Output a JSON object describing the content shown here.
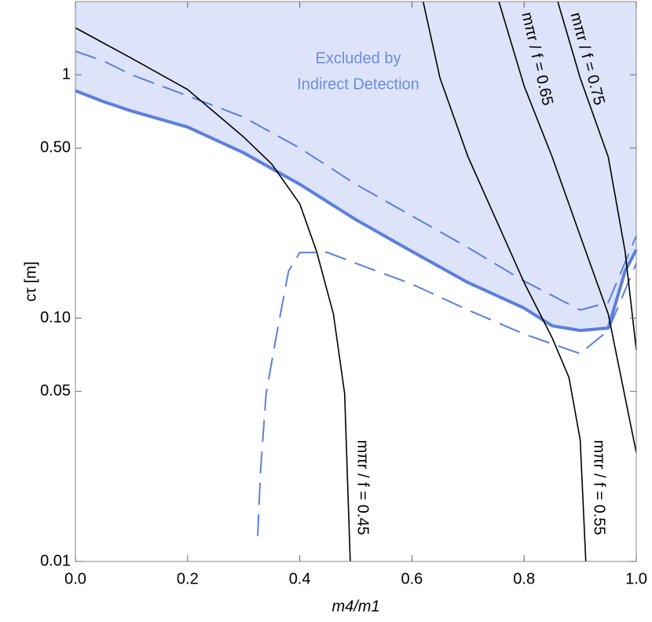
{
  "chart_data": {
    "type": "line",
    "x_label": "m4/m1",
    "y_label": "cτ [m]",
    "annotations": [
      "Excluded by",
      "Indirect Detection"
    ],
    "annotation_color": "#6b8ee3",
    "region_color": "#dde3f8",
    "xlim": [
      0,
      1
    ],
    "ylim": [
      0.01,
      2
    ],
    "log_y": true,
    "xticks": [
      {
        "value": 0,
        "label": "0.0"
      },
      0.2,
      0.4,
      0.6,
      0.8,
      {
        "value": 1,
        "label": "1.0"
      }
    ],
    "yticks": [
      0.01,
      0.05,
      {
        "value": 0.1,
        "label": "0.10"
      },
      {
        "value": 0.5,
        "label": "0.50"
      },
      1
    ],
    "series": [
      {
        "color": "#5b7fe0",
        "style": "thick",
        "fill_above": true,
        "x": [
          0,
          0.05,
          0.1,
          0.2,
          0.3,
          0.4,
          0.5,
          0.6,
          0.7,
          0.8,
          0.85,
          0.9,
          0.95,
          0.98,
          1.0
        ],
        "values": [
          0.86,
          0.776,
          0.71,
          0.61,
          0.478,
          0.355,
          0.254,
          0.188,
          0.14,
          0.11,
          0.093,
          0.089,
          0.091,
          0.156,
          0.191
        ]
      },
      {
        "color": "#5b7fe0",
        "style": "dashed",
        "x": [
          0,
          0.05,
          0.1,
          0.2,
          0.3,
          0.4,
          0.5,
          0.6,
          0.7,
          0.8,
          0.9,
          0.95,
          1.0
        ],
        "values": [
          1.25,
          1.14,
          1.0,
          0.82,
          0.67,
          0.5,
          0.355,
          0.263,
          0.195,
          0.142,
          0.108,
          0.116,
          0.218
        ]
      },
      {
        "color": "#5b7fe0",
        "style": "dashed",
        "x": [
          0.325,
          0.33,
          0.34,
          0.36,
          0.38,
          0.4,
          0.45,
          0.5,
          0.6,
          0.7,
          0.8,
          0.9,
          0.95,
          1.0
        ],
        "values": [
          0.0127,
          0.0234,
          0.049,
          0.089,
          0.156,
          0.186,
          0.186,
          0.168,
          0.138,
          0.108,
          0.086,
          0.0715,
          0.089,
          0.168
        ]
      },
      {
        "name": "mπr / f = 0.45",
        "color": "#000000",
        "style": "thin",
        "x": [
          0,
          0.1,
          0.2,
          0.3,
          0.35,
          0.4,
          0.43,
          0.46,
          0.48,
          0.49
        ],
        "values": [
          1.56,
          1.17,
          0.87,
          0.555,
          0.43,
          0.295,
          0.188,
          0.104,
          0.049,
          0.01
        ]
      },
      {
        "name": "mπr / f = 0.55",
        "color": "#000000",
        "style": "thin",
        "x": [
          0.62,
          0.65,
          0.7,
          0.75,
          0.8,
          0.85,
          0.88,
          0.9,
          0.91
        ],
        "values": [
          2.0,
          0.97,
          0.46,
          0.254,
          0.14,
          0.083,
          0.057,
          0.0316,
          0.01
        ]
      },
      {
        "name": "mπr / f = 0.65",
        "color": "#000000",
        "style": "thin",
        "x": [
          0.755,
          0.8,
          0.85,
          0.9,
          0.95,
          1.0
        ],
        "values": [
          2.0,
          0.9,
          0.46,
          0.218,
          0.104,
          0.028
        ]
      },
      {
        "name": "mπr / f = 0.75",
        "color": "#000000",
        "style": "thin",
        "x": [
          0.86,
          0.9,
          0.95,
          0.98,
          1.0
        ],
        "values": [
          2.0,
          0.97,
          0.46,
          0.188,
          0.074
        ]
      }
    ]
  }
}
